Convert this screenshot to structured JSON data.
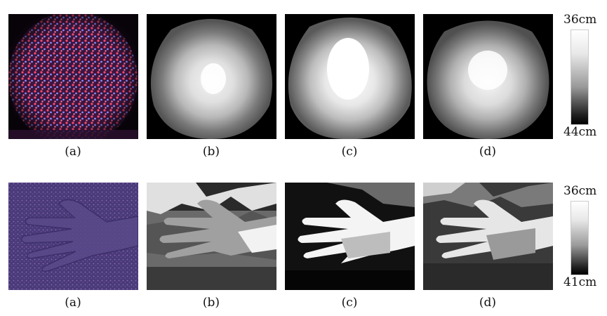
{
  "rows": [
    {
      "captions": [
        "(a)",
        "(b)",
        "(c)",
        "(d)"
      ],
      "colorbar": {
        "top_label": "36cm",
        "bottom_label": "44cm"
      }
    },
    {
      "captions": [
        "(a)",
        "(b)",
        "(c)",
        "(d)"
      ],
      "colorbar": {
        "top_label": "36cm",
        "bottom_label": "41cm"
      }
    }
  ]
}
